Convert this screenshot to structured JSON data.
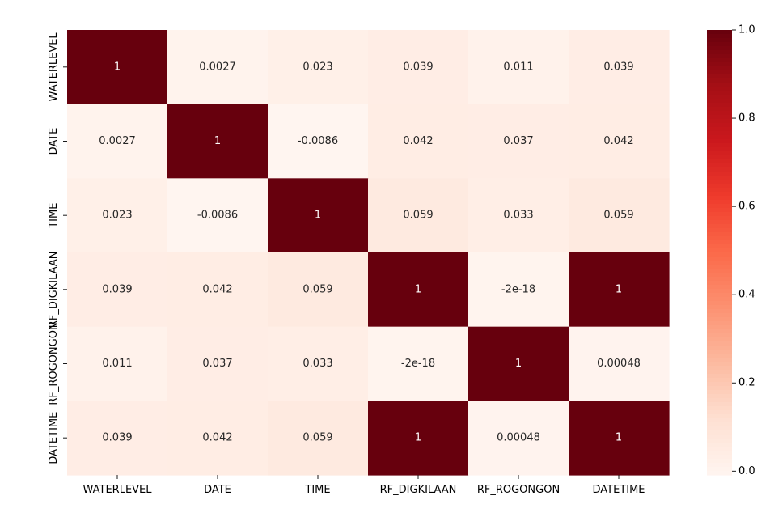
{
  "chart_data": {
    "type": "heatmap",
    "title": "",
    "xlabel": "",
    "ylabel": "",
    "x_labels": [
      "WATERLEVEL",
      "DATE",
      "TIME",
      "RF_DIGKILAAN",
      "RF_ROGONGON",
      "DATETIME"
    ],
    "y_labels": [
      "WATERLEVEL",
      "DATE",
      "TIME",
      "RF_DIGKILAAN",
      "RF_ROGONGON",
      "DATETIME"
    ],
    "values": [
      [
        1,
        0.0027,
        0.023,
        0.039,
        0.011,
        0.039
      ],
      [
        0.0027,
        1,
        -0.0086,
        0.042,
        0.037,
        0.042
      ],
      [
        0.023,
        -0.0086,
        1,
        0.059,
        0.033,
        0.059
      ],
      [
        0.039,
        0.042,
        0.059,
        1,
        -2e-18,
        1
      ],
      [
        0.011,
        0.037,
        0.033,
        -2e-18,
        1,
        0.00048
      ],
      [
        0.039,
        0.042,
        0.059,
        1,
        0.00048,
        1
      ]
    ],
    "annotations": [
      [
        "1",
        "0.0027",
        "0.023",
        "0.039",
        "0.011",
        "0.039"
      ],
      [
        "0.0027",
        "1",
        "-0.0086",
        "0.042",
        "0.037",
        "0.042"
      ],
      [
        "0.023",
        "-0.0086",
        "1",
        "0.059",
        "0.033",
        "0.059"
      ],
      [
        "0.039",
        "0.042",
        "0.059",
        "1",
        "-2e-18",
        "1"
      ],
      [
        "0.011",
        "0.037",
        "0.033",
        "-2e-18",
        "1",
        "0.00048"
      ],
      [
        "0.039",
        "0.042",
        "0.059",
        "1",
        "0.00048",
        "1"
      ]
    ],
    "colorbar": {
      "colormap": "Reds",
      "vmin": -0.0086,
      "vmax": 1,
      "ticks": [
        "0.0",
        "0.2",
        "0.4",
        "0.6",
        "0.8",
        "1.0"
      ],
      "tick_values": [
        0,
        0.2,
        0.4,
        0.6,
        0.8,
        1.0
      ]
    },
    "annotation_colors": {
      "dark_text": "#262626",
      "light_text": "#ffffff"
    }
  }
}
